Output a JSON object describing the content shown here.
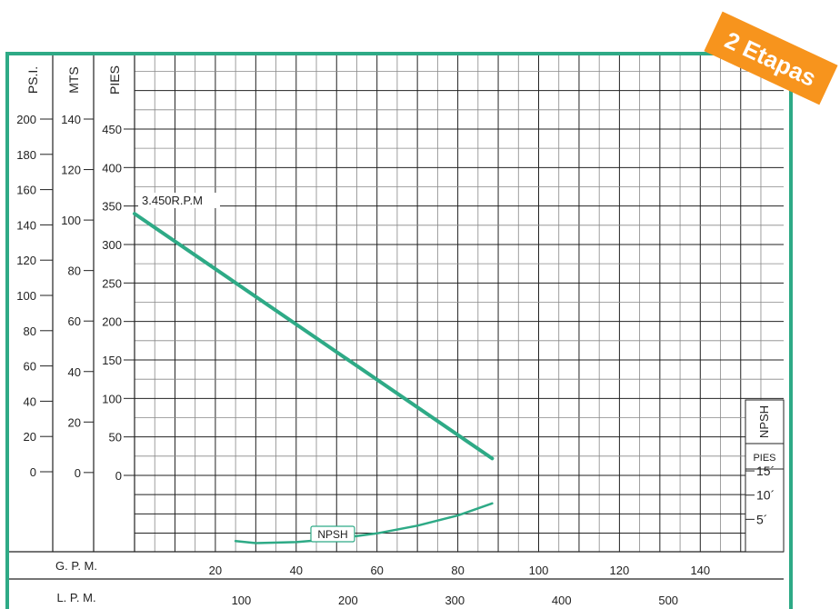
{
  "badge": {
    "text": "2 Etapas",
    "color": "#f7941d"
  },
  "colors": {
    "frame": "#2eaa86",
    "curve": "#2eaa86",
    "grid": "#000000"
  },
  "axes": {
    "psi": {
      "label": "PS.I.",
      "ticks": [
        "200",
        "180",
        "160",
        "140",
        "120",
        "100",
        "80",
        "60",
        "40",
        "20",
        "0"
      ]
    },
    "mts": {
      "label": "MTS",
      "ticks": [
        "140",
        "120",
        "100",
        "80",
        "60",
        "40",
        "20",
        "0"
      ]
    },
    "pies": {
      "label": "PIES",
      "ticks": [
        "450",
        "400",
        "350",
        "300",
        "250",
        "200",
        "150",
        "100",
        "50",
        "0"
      ]
    },
    "gpm": {
      "label": "G. P. M.",
      "ticks": [
        "20",
        "40",
        "60",
        "80",
        "100",
        "120",
        "140"
      ]
    },
    "lpm": {
      "label": "L. P. M.",
      "ticks": [
        "100",
        "200",
        "300",
        "400",
        "500"
      ]
    },
    "npsh": {
      "label": "NPSH",
      "unit": "PIES",
      "ticks": [
        "15´",
        "10´",
        "5´"
      ]
    }
  },
  "chart_data": {
    "type": "line",
    "title": "",
    "xlabel": "G. P. M.",
    "ylabel": "PIES",
    "xlim": [
      0,
      160
    ],
    "ylim": [
      0,
      500
    ],
    "grid": true,
    "series": [
      {
        "name": "3.450R.P.M",
        "x": [
          0,
          88.5
        ],
        "y": [
          340,
          22
        ]
      },
      {
        "name": "NPSH",
        "x": [
          25,
          30,
          40,
          50,
          60,
          70,
          80,
          88.5
        ],
        "y": [
          0.5,
          0.1,
          0.3,
          1.0,
          2.1,
          3.7,
          5.8,
          8.3
        ]
      }
    ]
  }
}
